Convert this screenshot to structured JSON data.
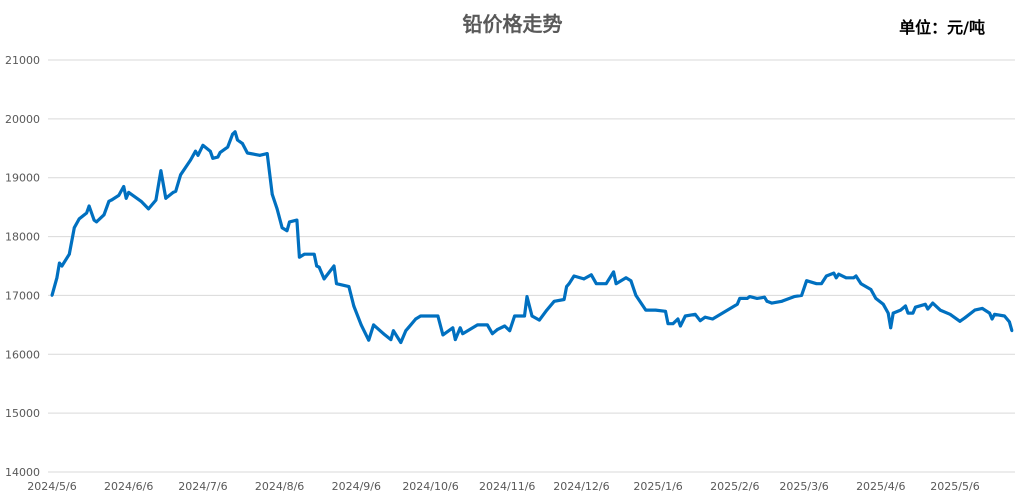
{
  "chart_data": {
    "type": "line",
    "title": "铅价格走势",
    "unit_label": "单位：元/吨",
    "xlabel": "",
    "ylabel": "",
    "ylim": [
      14000,
      21000
    ],
    "yticks": [
      "14000",
      "15000",
      "16000",
      "17000",
      "18000",
      "19000",
      "20000",
      "21000"
    ],
    "xticks": [
      "2024/5/6",
      "2024/6/6",
      "2024/7/6",
      "2024/8/6",
      "2024/9/6",
      "2024/10/6",
      "2024/11/6",
      "2024/12/6",
      "2025/1/6",
      "2025/2/6",
      "2025/3/6",
      "2025/4/6",
      "2025/5/6"
    ],
    "grid": "horizontal",
    "legend": "none",
    "color": "#0070C0",
    "series": [
      {
        "points": [
          [
            "2024-05-06",
            17000
          ],
          [
            "2024-05-08",
            17300
          ],
          [
            "2024-05-09",
            17550
          ],
          [
            "2024-05-10",
            17500
          ],
          [
            "2024-05-13",
            17700
          ],
          [
            "2024-05-15",
            18150
          ],
          [
            "2024-05-17",
            18300
          ],
          [
            "2024-05-20",
            18400
          ],
          [
            "2024-05-21",
            18520
          ],
          [
            "2024-05-23",
            18280
          ],
          [
            "2024-05-24",
            18250
          ],
          [
            "2024-05-27",
            18370
          ],
          [
            "2024-05-29",
            18600
          ],
          [
            "2024-05-30",
            18620
          ],
          [
            "2024-06-02",
            18700
          ],
          [
            "2024-06-04",
            18850
          ],
          [
            "2024-06-05",
            18650
          ],
          [
            "2024-06-06",
            18750
          ],
          [
            "2024-06-11",
            18600
          ],
          [
            "2024-06-14",
            18470
          ],
          [
            "2024-06-17",
            18620
          ],
          [
            "2024-06-19",
            19120
          ],
          [
            "2024-06-21",
            18650
          ],
          [
            "2024-06-24",
            18750
          ],
          [
            "2024-06-25",
            18770
          ],
          [
            "2024-06-27",
            19050
          ],
          [
            "2024-07-01",
            19300
          ],
          [
            "2024-07-03",
            19450
          ],
          [
            "2024-07-04",
            19380
          ],
          [
            "2024-07-06",
            19550
          ],
          [
            "2024-07-09",
            19450
          ],
          [
            "2024-07-10",
            19330
          ],
          [
            "2024-07-12",
            19350
          ],
          [
            "2024-07-13",
            19430
          ],
          [
            "2024-07-16",
            19520
          ],
          [
            "2024-07-18",
            19740
          ],
          [
            "2024-07-19",
            19780
          ],
          [
            "2024-07-20",
            19640
          ],
          [
            "2024-07-22",
            19580
          ],
          [
            "2024-07-24",
            19420
          ],
          [
            "2024-07-29",
            19380
          ],
          [
            "2024-08-01",
            19410
          ],
          [
            "2024-08-03",
            18720
          ],
          [
            "2024-08-05",
            18470
          ],
          [
            "2024-08-07",
            18150
          ],
          [
            "2024-08-09",
            18100
          ],
          [
            "2024-08-10",
            18250
          ],
          [
            "2024-08-13",
            18280
          ],
          [
            "2024-08-14",
            17650
          ],
          [
            "2024-08-16",
            17700
          ],
          [
            "2024-08-20",
            17700
          ],
          [
            "2024-08-21",
            17500
          ],
          [
            "2024-08-22",
            17480
          ],
          [
            "2024-08-24",
            17280
          ],
          [
            "2024-08-28",
            17500
          ],
          [
            "2024-08-29",
            17200
          ],
          [
            "2024-09-03",
            17150
          ],
          [
            "2024-09-05",
            16820
          ],
          [
            "2024-09-08",
            16500
          ],
          [
            "2024-09-11",
            16240
          ],
          [
            "2024-09-13",
            16500
          ],
          [
            "2024-09-17",
            16350
          ],
          [
            "2024-09-20",
            16250
          ],
          [
            "2024-09-21",
            16400
          ],
          [
            "2024-09-24",
            16200
          ],
          [
            "2024-09-26",
            16400
          ],
          [
            "2024-09-27",
            16450
          ],
          [
            "2024-09-30",
            16600
          ],
          [
            "2024-10-02",
            16650
          ],
          [
            "2024-10-09",
            16650
          ],
          [
            "2024-10-11",
            16330
          ],
          [
            "2024-10-15",
            16450
          ],
          [
            "2024-10-16",
            16250
          ],
          [
            "2024-10-18",
            16450
          ],
          [
            "2024-10-19",
            16350
          ],
          [
            "2024-10-25",
            16500
          ],
          [
            "2024-10-29",
            16500
          ],
          [
            "2024-10-31",
            16350
          ],
          [
            "2024-11-02",
            16420
          ],
          [
            "2024-11-05",
            16480
          ],
          [
            "2024-11-07",
            16400
          ],
          [
            "2024-11-09",
            16650
          ],
          [
            "2024-11-13",
            16650
          ],
          [
            "2024-11-14",
            16980
          ],
          [
            "2024-11-16",
            16650
          ],
          [
            "2024-11-19",
            16580
          ],
          [
            "2024-11-22",
            16750
          ],
          [
            "2024-11-25",
            16900
          ],
          [
            "2024-11-29",
            16930
          ],
          [
            "2024-11-30",
            17150
          ],
          [
            "2024-12-01",
            17200
          ],
          [
            "2024-12-03",
            17330
          ],
          [
            "2024-12-07",
            17280
          ],
          [
            "2024-12-10",
            17350
          ],
          [
            "2024-12-12",
            17200
          ],
          [
            "2024-12-16",
            17200
          ],
          [
            "2024-12-19",
            17400
          ],
          [
            "2024-12-20",
            17200
          ],
          [
            "2024-12-24",
            17300
          ],
          [
            "2024-12-26",
            17250
          ],
          [
            "2024-12-28",
            17000
          ],
          [
            "2025-01-01",
            16750
          ],
          [
            "2025-01-05",
            16750
          ],
          [
            "2025-01-09",
            16730
          ],
          [
            "2025-01-10",
            16520
          ],
          [
            "2025-01-12",
            16520
          ],
          [
            "2025-01-14",
            16600
          ],
          [
            "2025-01-15",
            16480
          ],
          [
            "2025-01-17",
            16650
          ],
          [
            "2025-01-21",
            16680
          ],
          [
            "2025-01-23",
            16570
          ],
          [
            "2025-01-25",
            16630
          ],
          [
            "2025-01-28",
            16600
          ],
          [
            "2025-02-07",
            16850
          ],
          [
            "2025-02-08",
            16950
          ],
          [
            "2025-02-11",
            16950
          ],
          [
            "2025-02-12",
            16980
          ],
          [
            "2025-02-15",
            16950
          ],
          [
            "2025-02-18",
            16970
          ],
          [
            "2025-02-19",
            16900
          ],
          [
            "2025-02-21",
            16870
          ],
          [
            "2025-02-25",
            16900
          ],
          [
            "2025-03-02",
            16980
          ],
          [
            "2025-03-05",
            17000
          ],
          [
            "2025-03-07",
            17250
          ],
          [
            "2025-03-11",
            17200
          ],
          [
            "2025-03-13",
            17200
          ],
          [
            "2025-03-15",
            17330
          ],
          [
            "2025-03-18",
            17380
          ],
          [
            "2025-03-19",
            17300
          ],
          [
            "2025-03-20",
            17360
          ],
          [
            "2025-03-23",
            17300
          ],
          [
            "2025-03-26",
            17300
          ],
          [
            "2025-03-27",
            17330
          ],
          [
            "2025-03-29",
            17200
          ],
          [
            "2025-04-02",
            17100
          ],
          [
            "2025-04-04",
            16950
          ],
          [
            "2025-04-07",
            16850
          ],
          [
            "2025-04-09",
            16700
          ],
          [
            "2025-04-10",
            16450
          ],
          [
            "2025-04-11",
            16700
          ],
          [
            "2025-04-14",
            16750
          ],
          [
            "2025-04-16",
            16820
          ],
          [
            "2025-04-17",
            16700
          ],
          [
            "2025-04-19",
            16700
          ],
          [
            "2025-04-20",
            16800
          ],
          [
            "2025-04-24",
            16850
          ],
          [
            "2025-04-25",
            16770
          ],
          [
            "2025-04-27",
            16870
          ],
          [
            "2025-04-30",
            16750
          ],
          [
            "2025-05-04",
            16680
          ],
          [
            "2025-05-08",
            16560
          ],
          [
            "2025-05-10",
            16620
          ],
          [
            "2025-05-14",
            16750
          ],
          [
            "2025-05-17",
            16780
          ],
          [
            "2025-05-20",
            16700
          ],
          [
            "2025-05-21",
            16600
          ],
          [
            "2025-05-22",
            16680
          ],
          [
            "2025-05-26",
            16650
          ],
          [
            "2025-05-28",
            16550
          ],
          [
            "2025-05-29",
            16400
          ]
        ]
      }
    ]
  }
}
